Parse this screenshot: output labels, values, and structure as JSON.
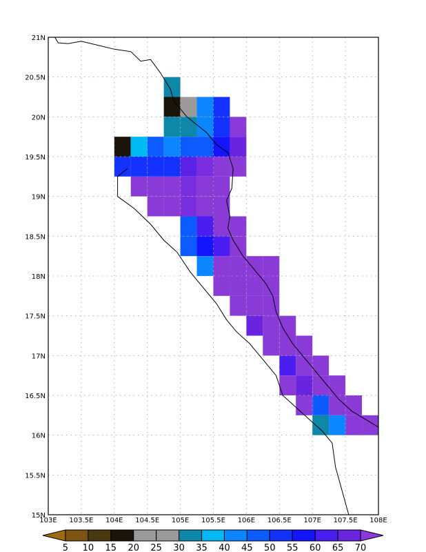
{
  "map": {
    "lon_range": [
      103,
      108
    ],
    "lat_range": [
      15,
      21
    ],
    "grid": "dotted",
    "lon_labels": [
      "103E",
      "103.5E",
      "104E",
      "104.5E",
      "105E",
      "105.5E",
      "106E",
      "106.5E",
      "107E",
      "107.5E",
      "108E"
    ],
    "lat_labels": [
      "15N",
      "15.5N",
      "16N",
      "16.5N",
      "17N",
      "17.5N",
      "18N",
      "18.5N",
      "19N",
      "19.5N",
      "20N",
      "20.5N",
      "21N"
    ],
    "cell_size_deg": 0.25,
    "cells": [
      {
        "lon": 104.75,
        "lat": 20.25,
        "c": "#0e87a8"
      },
      {
        "lon": 104.75,
        "lat": 20.0,
        "c": "#1b140a"
      },
      {
        "lon": 105.0,
        "lat": 20.0,
        "c": "#9a9a9a"
      },
      {
        "lon": 105.25,
        "lat": 20.0,
        "c": "#0c86ff"
      },
      {
        "lon": 105.5,
        "lat": 20.0,
        "c": "#1432ff"
      },
      {
        "lon": 104.75,
        "lat": 19.75,
        "c": "#0e87a8"
      },
      {
        "lon": 105.0,
        "lat": 19.75,
        "c": "#0e87a8"
      },
      {
        "lon": 105.25,
        "lat": 19.75,
        "c": "#0c86ff"
      },
      {
        "lon": 105.5,
        "lat": 19.75,
        "c": "#1432ff"
      },
      {
        "lon": 105.75,
        "lat": 19.75,
        "c": "#8a3ad6"
      },
      {
        "lon": 104.0,
        "lat": 19.5,
        "c": "#1b140a"
      },
      {
        "lon": 104.25,
        "lat": 19.5,
        "c": "#00baf5"
      },
      {
        "lon": 104.5,
        "lat": 19.5,
        "c": "#0c5bff"
      },
      {
        "lon": 104.75,
        "lat": 19.5,
        "c": "#0c86ff"
      },
      {
        "lon": 105.0,
        "lat": 19.5,
        "c": "#0c5bff"
      },
      {
        "lon": 105.25,
        "lat": 19.5,
        "c": "#0c5bff"
      },
      {
        "lon": 105.5,
        "lat": 19.5,
        "c": "#1414ff"
      },
      {
        "lon": 105.75,
        "lat": 19.5,
        "c": "#6a24e0"
      },
      {
        "lon": 104.0,
        "lat": 19.25,
        "c": "#1432ff"
      },
      {
        "lon": 104.25,
        "lat": 19.25,
        "c": "#1432ff"
      },
      {
        "lon": 104.5,
        "lat": 19.25,
        "c": "#1432ff"
      },
      {
        "lon": 104.75,
        "lat": 19.25,
        "c": "#1432ff"
      },
      {
        "lon": 105.0,
        "lat": 19.25,
        "c": "#5a22e6"
      },
      {
        "lon": 105.25,
        "lat": 19.25,
        "c": "#7a2ee0"
      },
      {
        "lon": 105.5,
        "lat": 19.25,
        "c": "#8a3ad6"
      },
      {
        "lon": 105.75,
        "lat": 19.25,
        "c": "#8a3ad6"
      },
      {
        "lon": 104.25,
        "lat": 19.0,
        "c": "#8a3ad6"
      },
      {
        "lon": 104.5,
        "lat": 19.0,
        "c": "#8a3ad6"
      },
      {
        "lon": 104.75,
        "lat": 19.0,
        "c": "#8a3ad6"
      },
      {
        "lon": 105.0,
        "lat": 19.0,
        "c": "#7a2ee0"
      },
      {
        "lon": 105.25,
        "lat": 19.0,
        "c": "#8a3ad6"
      },
      {
        "lon": 105.5,
        "lat": 19.0,
        "c": "#8a3ad6"
      },
      {
        "lon": 104.5,
        "lat": 18.75,
        "c": "#8a3ad6"
      },
      {
        "lon": 104.75,
        "lat": 18.75,
        "c": "#8a3ad6"
      },
      {
        "lon": 105.0,
        "lat": 18.75,
        "c": "#7a2ee0"
      },
      {
        "lon": 105.25,
        "lat": 18.75,
        "c": "#8a3ad6"
      },
      {
        "lon": 105.5,
        "lat": 18.75,
        "c": "#8a3ad6"
      },
      {
        "lon": 105.0,
        "lat": 18.5,
        "c": "#0c5bff"
      },
      {
        "lon": 105.25,
        "lat": 18.5,
        "c": "#4a1ef0"
      },
      {
        "lon": 105.5,
        "lat": 18.5,
        "c": "#8a3ad6"
      },
      {
        "lon": 105.75,
        "lat": 18.5,
        "c": "#8a3ad6"
      },
      {
        "lon": 105.0,
        "lat": 18.25,
        "c": "#0c5bff"
      },
      {
        "lon": 105.25,
        "lat": 18.25,
        "c": "#1414ff"
      },
      {
        "lon": 105.5,
        "lat": 18.25,
        "c": "#4a1ef0"
      },
      {
        "lon": 105.75,
        "lat": 18.25,
        "c": "#8a3ad6"
      },
      {
        "lon": 105.25,
        "lat": 18.0,
        "c": "#0c86ff"
      },
      {
        "lon": 105.5,
        "lat": 18.0,
        "c": "#8a3ad6"
      },
      {
        "lon": 105.75,
        "lat": 18.0,
        "c": "#8a3ad6"
      },
      {
        "lon": 106.0,
        "lat": 18.0,
        "c": "#8a3ad6"
      },
      {
        "lon": 106.25,
        "lat": 18.0,
        "c": "#8a3ad6"
      },
      {
        "lon": 105.5,
        "lat": 17.75,
        "c": "#8a3ad6"
      },
      {
        "lon": 105.75,
        "lat": 17.75,
        "c": "#8a3ad6"
      },
      {
        "lon": 106.0,
        "lat": 17.75,
        "c": "#8a3ad6"
      },
      {
        "lon": 106.25,
        "lat": 17.75,
        "c": "#8a3ad6"
      },
      {
        "lon": 105.75,
        "lat": 17.5,
        "c": "#8a3ad6"
      },
      {
        "lon": 106.0,
        "lat": 17.5,
        "c": "#8a3ad6"
      },
      {
        "lon": 106.25,
        "lat": 17.5,
        "c": "#8a3ad6"
      },
      {
        "lon": 106.0,
        "lat": 17.25,
        "c": "#6a24e0"
      },
      {
        "lon": 106.25,
        "lat": 17.25,
        "c": "#8a3ad6"
      },
      {
        "lon": 106.5,
        "lat": 17.25,
        "c": "#8a3ad6"
      },
      {
        "lon": 106.25,
        "lat": 17.0,
        "c": "#8a3ad6"
      },
      {
        "lon": 106.5,
        "lat": 17.0,
        "c": "#8a3ad6"
      },
      {
        "lon": 106.75,
        "lat": 17.0,
        "c": "#8a3ad6"
      },
      {
        "lon": 106.5,
        "lat": 16.75,
        "c": "#4a1ef0"
      },
      {
        "lon": 106.75,
        "lat": 16.75,
        "c": "#8a3ad6"
      },
      {
        "lon": 107.0,
        "lat": 16.75,
        "c": "#8a3ad6"
      },
      {
        "lon": 106.5,
        "lat": 16.5,
        "c": "#8a3ad6"
      },
      {
        "lon": 106.75,
        "lat": 16.5,
        "c": "#6a24e0"
      },
      {
        "lon": 107.0,
        "lat": 16.5,
        "c": "#8a3ad6"
      },
      {
        "lon": 107.25,
        "lat": 16.5,
        "c": "#8a3ad6"
      },
      {
        "lon": 106.75,
        "lat": 16.25,
        "c": "#8a3ad6"
      },
      {
        "lon": 107.0,
        "lat": 16.25,
        "c": "#0c5bff"
      },
      {
        "lon": 107.25,
        "lat": 16.25,
        "c": "#8a3ad6"
      },
      {
        "lon": 107.5,
        "lat": 16.25,
        "c": "#8a3ad6"
      },
      {
        "lon": 107.0,
        "lat": 16.0,
        "c": "#0e87a8"
      },
      {
        "lon": 107.25,
        "lat": 16.0,
        "c": "#0c86ff"
      },
      {
        "lon": 107.5,
        "lat": 16.0,
        "c": "#8a3ad6"
      },
      {
        "lon": 107.75,
        "lat": 16.0,
        "c": "#8a3ad6"
      }
    ],
    "coastline_deg": [
      [
        103.1,
        21.0
      ],
      [
        103.15,
        20.93
      ],
      [
        103.3,
        20.92
      ],
      [
        103.5,
        20.95
      ],
      [
        103.75,
        20.9
      ],
      [
        104.0,
        20.85
      ],
      [
        104.25,
        20.82
      ],
      [
        104.4,
        20.7
      ],
      [
        104.55,
        20.72
      ],
      [
        104.7,
        20.55
      ],
      [
        104.85,
        20.35
      ],
      [
        104.9,
        20.2
      ],
      [
        105.0,
        20.1
      ],
      [
        105.1,
        20.0
      ],
      [
        105.25,
        19.9
      ],
      [
        105.4,
        19.8
      ],
      [
        105.55,
        19.65
      ],
      [
        105.72,
        19.55
      ],
      [
        105.8,
        19.35
      ],
      [
        105.78,
        19.1
      ],
      [
        105.7,
        18.95
      ],
      [
        105.75,
        18.75
      ],
      [
        105.72,
        18.6
      ],
      [
        105.8,
        18.45
      ],
      [
        105.95,
        18.25
      ],
      [
        106.15,
        18.05
      ],
      [
        106.3,
        17.9
      ],
      [
        106.4,
        17.75
      ],
      [
        106.45,
        17.55
      ],
      [
        106.55,
        17.35
      ],
      [
        106.7,
        17.15
      ],
      [
        106.85,
        17.0
      ],
      [
        107.0,
        16.85
      ],
      [
        107.2,
        16.65
      ],
      [
        107.4,
        16.45
      ],
      [
        107.6,
        16.3
      ],
      [
        107.8,
        16.2
      ],
      [
        108.0,
        16.1
      ]
    ],
    "border_deg": [
      [
        104.2,
        19.35
      ],
      [
        104.05,
        19.25
      ],
      [
        104.05,
        19.0
      ],
      [
        104.3,
        18.85
      ],
      [
        104.55,
        18.65
      ],
      [
        104.75,
        18.45
      ],
      [
        104.95,
        18.3
      ],
      [
        105.15,
        18.05
      ],
      [
        105.35,
        17.85
      ],
      [
        105.55,
        17.65
      ],
      [
        105.7,
        17.45
      ],
      [
        105.85,
        17.3
      ],
      [
        106.05,
        17.15
      ],
      [
        106.25,
        16.95
      ],
      [
        106.45,
        16.75
      ],
      [
        106.55,
        16.5
      ],
      [
        106.75,
        16.35
      ],
      [
        106.95,
        16.2
      ],
      [
        107.15,
        16.05
      ],
      [
        107.3,
        15.9
      ],
      [
        107.35,
        15.6
      ],
      [
        107.45,
        15.3
      ],
      [
        107.55,
        15.0
      ]
    ]
  },
  "colorbar": {
    "labels": [
      "5",
      "10",
      "15",
      "20",
      "25",
      "30",
      "35",
      "40",
      "45",
      "50",
      "55",
      "60",
      "65",
      "70"
    ],
    "colors": [
      "#a06a10",
      "#7a5410",
      "#4a3810",
      "#1b140a",
      "#9a9a9a",
      "#9a9a9a",
      "#0e87a8",
      "#00baf5",
      "#0c86ff",
      "#0c5bff",
      "#1432ff",
      "#1414ff",
      "#4a1ef0",
      "#6a24e0",
      "#8a3ad6"
    ]
  }
}
